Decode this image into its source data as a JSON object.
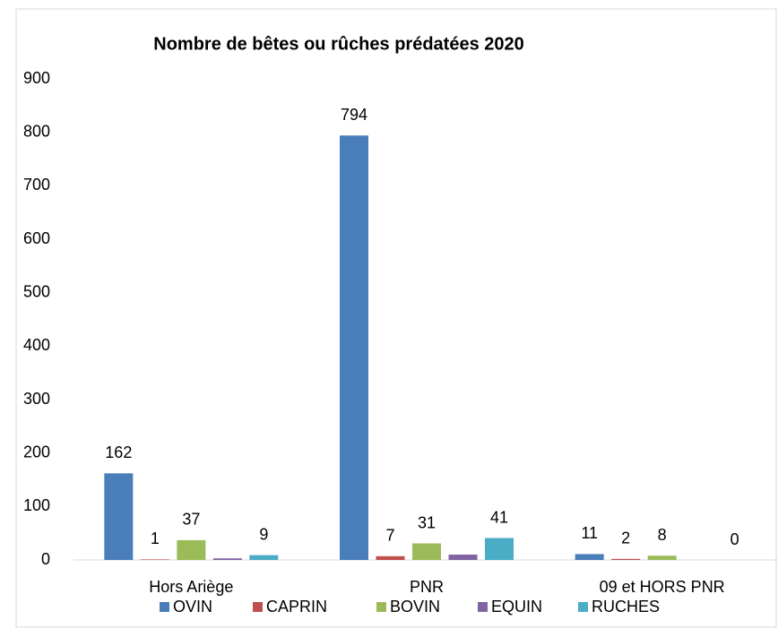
{
  "chart_data": {
    "type": "bar",
    "title": "Nombre de bêtes ou rûches prédatées 2020",
    "categories": [
      "Hors Ariège",
      "PNR",
      "09 et HORS PNR"
    ],
    "series": [
      {
        "name": "OVIN",
        "color": "#4a7ebb",
        "values": [
          162,
          794,
          11
        ],
        "data_labels": true
      },
      {
        "name": "CAPRIN",
        "color": "#c0504d",
        "values": [
          1,
          7,
          2
        ],
        "data_labels": true
      },
      {
        "name": "BOVIN",
        "color": "#9bbb59",
        "values": [
          37,
          31,
          8
        ],
        "data_labels": true
      },
      {
        "name": "EQUIN",
        "color": "#8064a2",
        "values": [
          3,
          10,
          0
        ],
        "data_labels": false
      },
      {
        "name": "RUCHES",
        "color": "#4bacc6",
        "values": [
          9,
          41,
          0
        ],
        "data_labels": true
      }
    ],
    "ylim": [
      0,
      900
    ],
    "yticks": [
      0,
      100,
      200,
      300,
      400,
      500,
      600,
      700,
      800,
      900
    ],
    "grid": false,
    "legend": "bottom"
  }
}
